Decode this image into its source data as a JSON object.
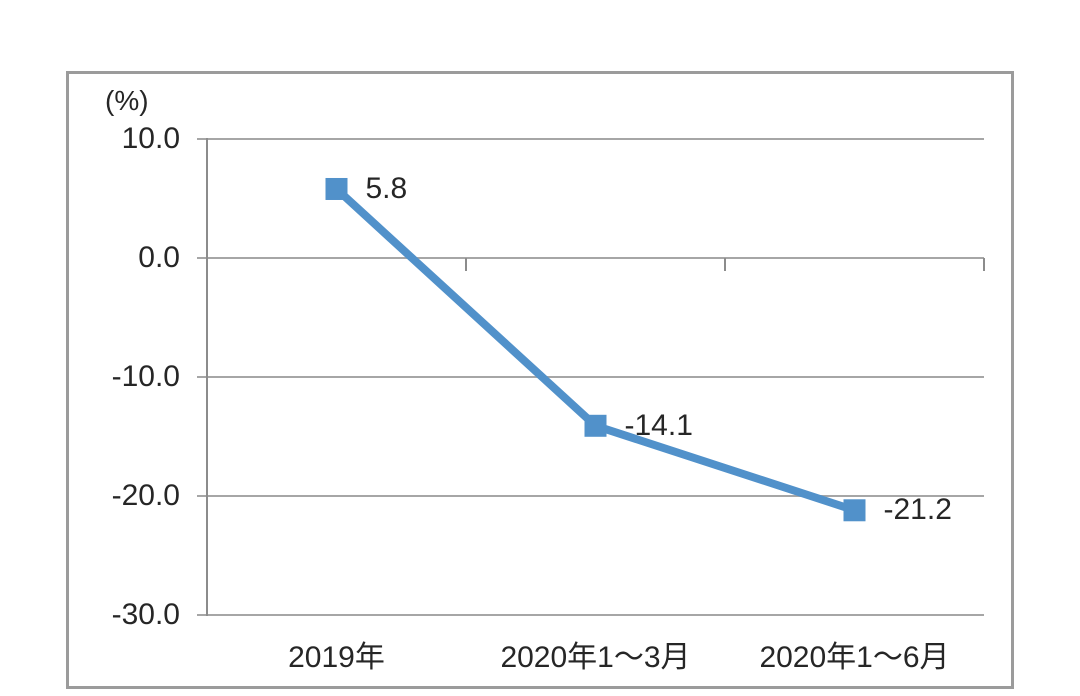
{
  "chart_data": {
    "type": "line",
    "title": "",
    "unit_label": "(%)",
    "categories": [
      "2019年",
      "2020年1～3月",
      "2020年1～6月"
    ],
    "series": [
      {
        "name": "series-1",
        "values": [
          5.8,
          -14.1,
          -21.2
        ],
        "value_labels": [
          "5.8",
          "-14.1",
          "-21.2"
        ]
      }
    ],
    "yticks": [
      {
        "value": 10,
        "label": "10.0"
      },
      {
        "value": 0,
        "label": "0.0"
      },
      {
        "value": -10,
        "label": "-10.0"
      },
      {
        "value": -20,
        "label": "-20.0"
      },
      {
        "value": -30,
        "label": "-30.0"
      }
    ],
    "ylim": [
      -30,
      10
    ],
    "xlabel": "",
    "ylabel": "(%)",
    "grid": true,
    "legend_position": "none",
    "marker_shape": "square",
    "colors": {
      "line": "#5191ca",
      "marker": "#5191ca",
      "gridline": "#a6a6a6",
      "axis": "#8c8c8c",
      "border": "#9b9b9b",
      "text": "#262626",
      "background": "#ffffff"
    }
  }
}
